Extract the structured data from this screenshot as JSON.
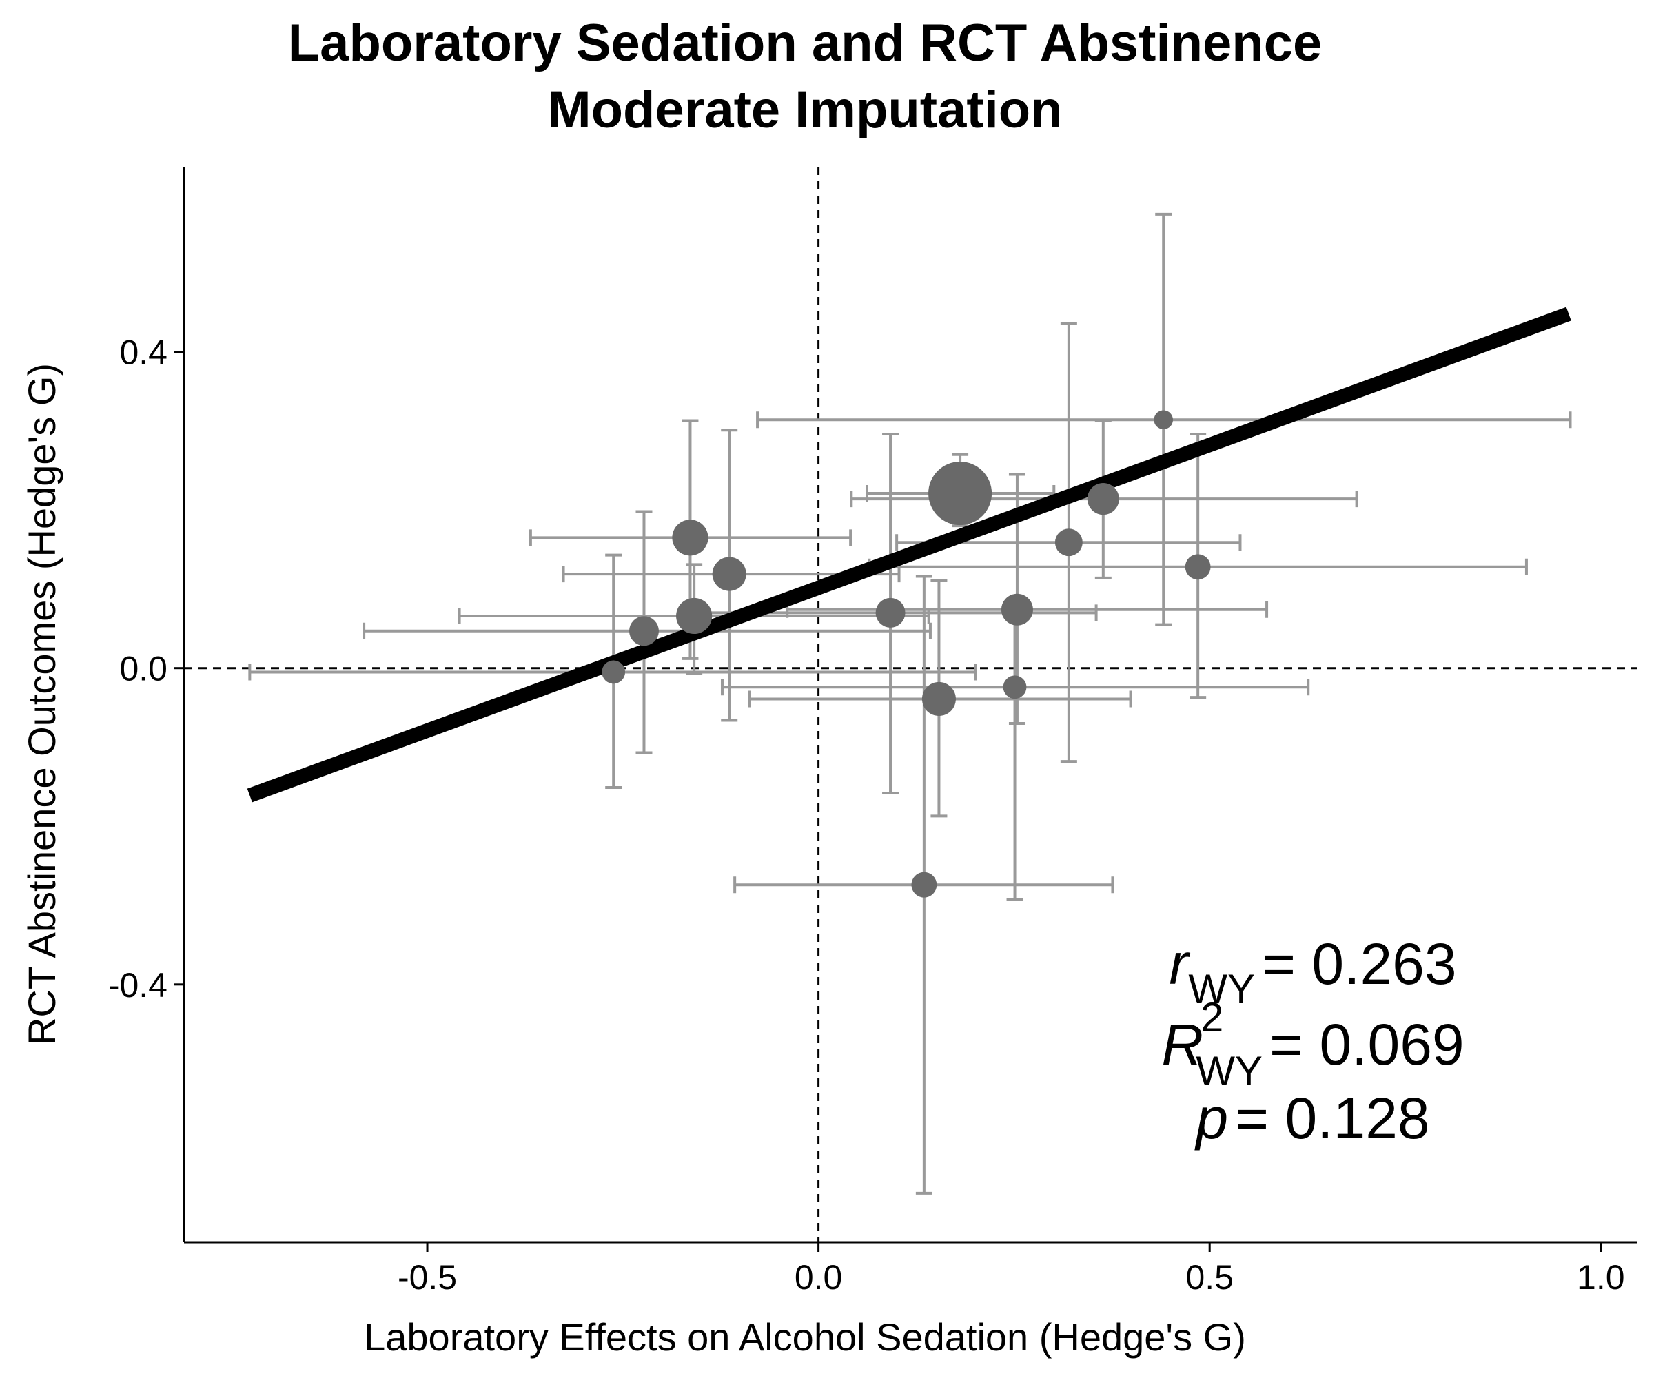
{
  "chart_data": {
    "type": "scatter",
    "title": "Laboratory Sedation and RCT Abstinence",
    "subtitle": "Moderate Imputation",
    "x_label": "Laboratory Effects on Alcohol Sedation (Hedge's G)",
    "y_label": "RCT Abstinence Outcomes (Hedge's G)",
    "xlim": [
      -0.811,
      1.046
    ],
    "ylim": [
      -0.726,
      0.634
    ],
    "xticks": [
      -0.5,
      {
        "value": 0,
        "label": "0.0"
      },
      0.5,
      {
        "value": 1,
        "label": "1.0"
      }
    ],
    "yticks": [
      0.4,
      {
        "value": 0,
        "label": "0.0"
      },
      -0.4
    ],
    "hline": 0,
    "vline": 0,
    "color": "#696969",
    "error_color": "#999999",
    "fit_color": "#000000",
    "x": [
      0.441,
      0.181,
      0.364,
      0.32,
      0.485,
      -0.164,
      -0.114,
      -0.159,
      -0.223,
      -0.262,
      0.092,
      0.254,
      0.251,
      0.154,
      0.135
    ],
    "y": [
      0.314,
      0.221,
      0.214,
      0.159,
      0.128,
      0.165,
      0.119,
      0.066,
      0.047,
      -0.005,
      0.07,
      0.074,
      -0.024,
      -0.039,
      -0.274
    ],
    "x_low": [
      -0.078,
      0.062,
      0.042,
      0.1,
      0.065,
      -0.368,
      -0.326,
      -0.459,
      -0.581,
      -0.727,
      -0.16,
      -0.04,
      -0.123,
      -0.088,
      -0.107
    ],
    "x_high": [
      0.961,
      0.301,
      0.688,
      0.539,
      0.905,
      0.041,
      0.103,
      0.141,
      0.143,
      0.201,
      0.355,
      0.573,
      0.626,
      0.399,
      0.376
    ],
    "y_low": [
      0.055,
      0.18,
      0.114,
      -0.118,
      -0.037,
      0.012,
      -0.066,
      -0.007,
      -0.107,
      -0.151,
      -0.158,
      -0.07,
      -0.293,
      -0.187,
      -0.664
    ],
    "y_high": [
      0.574,
      0.27,
      0.313,
      0.436,
      0.296,
      0.313,
      0.301,
      0.131,
      0.198,
      0.143,
      0.296,
      0.245,
      0.075,
      0.111,
      0.116
    ],
    "sizes": [
      9,
      30,
      15,
      13,
      12,
      17,
      16,
      17,
      14,
      11,
      14,
      15,
      11,
      16,
      12
    ],
    "fit": {
      "x": [
        -0.727,
        0.959
      ],
      "y": [
        -0.161,
        0.448
      ]
    },
    "annotations": [
      {
        "symbol": "r",
        "subscript": "WY",
        "value": "= 0.263"
      },
      {
        "symbol": "R",
        "superscript": "2",
        "subscript": "WY",
        "value": "= 0.069"
      },
      {
        "symbol": "p",
        "value": "= 0.128"
      }
    ]
  }
}
